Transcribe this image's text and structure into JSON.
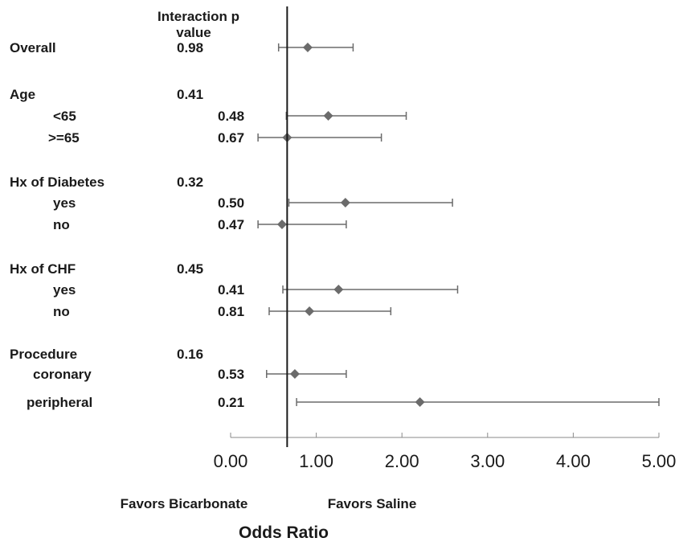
{
  "chart_data": {
    "type": "forest",
    "header": {
      "line1": "Interaction p",
      "line2": "value"
    },
    "rows": [
      {
        "label": "Overall",
        "indent": 0,
        "p": "0.98",
        "p_col": "group",
        "or": 0.9,
        "lo": 0.56,
        "hi": 1.43
      },
      {
        "label": "Age",
        "indent": 0,
        "p": "0.41",
        "p_col": "group"
      },
      {
        "label": "<65",
        "indent": 1,
        "p": "0.48",
        "p_col": "sub",
        "or": 1.14,
        "lo": 0.65,
        "hi": 2.05
      },
      {
        "label": ">=65",
        "indent": 1,
        "p": "0.67",
        "p_col": "sub",
        "or": 0.66,
        "lo": 0.32,
        "hi": 1.76
      },
      {
        "label": "Hx of Diabetes",
        "indent": 0,
        "p": "0.32",
        "p_col": "group"
      },
      {
        "label": "yes",
        "indent": 1,
        "p": "0.50",
        "p_col": "sub",
        "or": 1.34,
        "lo": 0.68,
        "hi": 2.59
      },
      {
        "label": "no",
        "indent": 1,
        "p": "0.47",
        "p_col": "sub",
        "or": 0.6,
        "lo": 0.32,
        "hi": 1.35
      },
      {
        "label": "Hx of CHF",
        "indent": 0,
        "p": "0.45",
        "p_col": "group"
      },
      {
        "label": "yes",
        "indent": 1,
        "p": "0.41",
        "p_col": "sub",
        "or": 1.26,
        "lo": 0.61,
        "hi": 2.65
      },
      {
        "label": "no",
        "indent": 1,
        "p": "0.81",
        "p_col": "sub",
        "or": 0.92,
        "lo": 0.45,
        "hi": 1.87
      },
      {
        "label": "Procedure",
        "indent": 0,
        "p": "0.16",
        "p_col": "group"
      },
      {
        "label": "coronary",
        "indent": 1,
        "p": "0.53",
        "p_col": "sub",
        "or": 0.75,
        "lo": 0.42,
        "hi": 1.35
      },
      {
        "label": "peripheral",
        "indent": 1,
        "p": "0.21",
        "p_col": "sub",
        "or": 2.21,
        "lo": 0.77,
        "hi": 5.0
      }
    ],
    "x_ticks": [
      "0.00",
      "1.00",
      "2.00",
      "3.00",
      "4.00",
      "5.00"
    ],
    "xlim": [
      0,
      5
    ],
    "reference_line": 0.66,
    "favors_left": "Favors Bicarbonate",
    "favors_right": "Favors Saline",
    "xlabel": "Odds Ratio",
    "colors": {
      "marker": "#6b6b6b",
      "ci": "#6b6b6b",
      "reference": "#1a1a1a",
      "axis": "#8a8a8a"
    }
  }
}
